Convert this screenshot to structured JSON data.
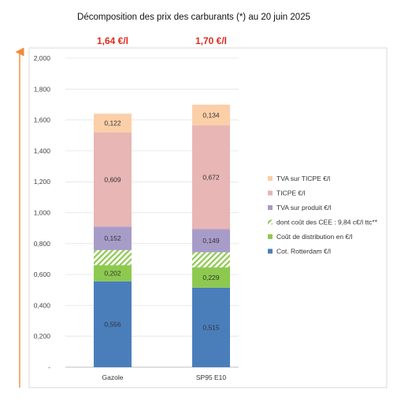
{
  "chart_data": {
    "type": "bar",
    "stacked": true,
    "title": "Décomposition des prix des carburants (*) au 20 juin 2025",
    "categories": [
      "Gazole",
      "SP95 E10"
    ],
    "totals": [
      "1,64 €/l",
      "1,70 €/l"
    ],
    "ylim": [
      0,
      2.0
    ],
    "yticks": [
      "-",
      "0,200",
      "0,400",
      "0,600",
      "0,800",
      "1,000",
      "1,200",
      "1,400",
      "1,600",
      "1,800",
      "2,000"
    ],
    "ytick_values": [
      0,
      0.2,
      0.4,
      0.6,
      0.8,
      1.0,
      1.2,
      1.4,
      1.6,
      1.8,
      2.0
    ],
    "legend_position": "right",
    "series": [
      {
        "name": "Cot. Rotterdam €/l",
        "values": [
          0.556,
          0.515
        ],
        "labels": [
          "0,556",
          "0,515"
        ],
        "color": "#4a7ebb"
      },
      {
        "name": "Coût de distribution en €/l",
        "values": [
          0.202,
          0.229
        ],
        "labels": [
          "0,202",
          "0,229"
        ],
        "color": "#8dc94f"
      },
      {
        "name": "dont coût des CEE : 9,84 c€/l ttc**",
        "values": [
          0.0984,
          0.0984
        ],
        "labels": [
          "",
          ""
        ],
        "color": "#8dc94f",
        "pattern": "hatch",
        "overlay": true
      },
      {
        "name": "TVA sur produit €/l",
        "values": [
          0.152,
          0.149
        ],
        "labels": [
          "0,152",
          "0,149"
        ],
        "color": "#a79cc8"
      },
      {
        "name": "TICPE €/l",
        "values": [
          0.609,
          0.672
        ],
        "labels": [
          "0,609",
          "0,672"
        ],
        "color": "#e7b6b5"
      },
      {
        "name": "TVA sur TICPE €/l",
        "values": [
          0.122,
          0.134
        ],
        "labels": [
          "0,122",
          "0,134"
        ],
        "color": "#fbcfa8"
      }
    ]
  },
  "colors": {
    "total_text": "#e02b20",
    "arrow": "#f08a3c",
    "grid": "#e4e4e4",
    "frame": "#d9d9d9"
  }
}
